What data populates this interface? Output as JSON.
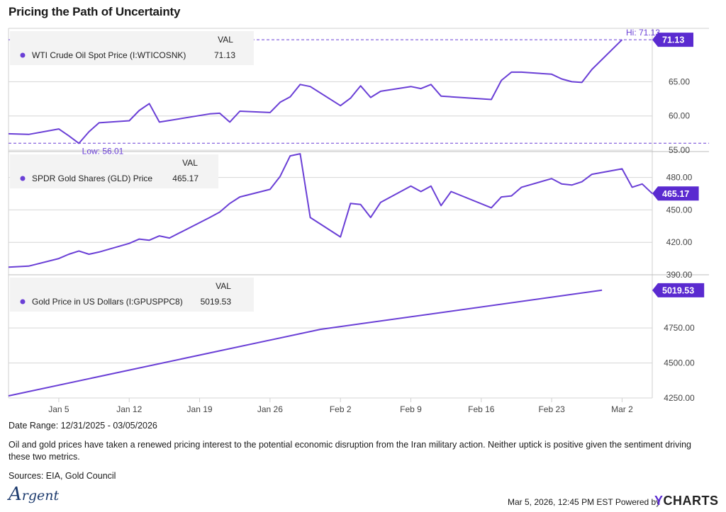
{
  "title": "Pricing the Path of Uncertainty",
  "footer": {
    "date_range": "Date Range: 12/31/2025 - 03/05/2026",
    "description": "Oil and gold prices have taken a renewed pricing interest to the potential economic disruption from the Iran military action. Neither uptick is positive given the sentiment driving these two metrics.",
    "sources": "Sources: EIA, Gold Council",
    "timestamp": "Mar 5, 2026, 12:45 PM EST Powered by",
    "brand": "CHARTS",
    "brand_letter": "Y",
    "logo_text": "rgent",
    "logo_letter": "A"
  },
  "colors": {
    "line": "#6a3fd6",
    "label_bg": "#5a2ad0",
    "grid": "#d6d6d6",
    "text": "#444444"
  },
  "chart_data": {
    "type": "line",
    "x_ticks": [
      "Jan 5",
      "Jan 12",
      "Jan 19",
      "Jan 26",
      "Feb 2",
      "Feb 9",
      "Feb 16",
      "Feb 23",
      "Mar 2"
    ],
    "x_tick_dates": [
      "2026-01-05",
      "2026-01-12",
      "2026-01-19",
      "2026-01-26",
      "2026-02-02",
      "2026-02-09",
      "2026-02-16",
      "2026-02-23",
      "2026-03-02"
    ],
    "x_range": [
      "2025-12-31",
      "2026-03-05"
    ],
    "panels": [
      {
        "legend_header": "VAL",
        "series_name": "WTI Crude Oil Spot Price (I:WTICOSNK)",
        "last_value": "71.13",
        "y_ticks": [
          "65.00",
          "60.00",
          "55.00"
        ],
        "y_tick_values": [
          65,
          60,
          55
        ],
        "ylim": [
          54.8,
          72.8
        ],
        "high": {
          "label": "Hi: 71.13",
          "value": 71.13
        },
        "low": {
          "label": "Low: 56.01",
          "value": 56.01
        },
        "points": [
          [
            "2025-12-31",
            57.4
          ],
          [
            "2026-01-02",
            57.3
          ],
          [
            "2026-01-05",
            58.1
          ],
          [
            "2026-01-06",
            57.1
          ],
          [
            "2026-01-07",
            56.0
          ],
          [
            "2026-01-08",
            57.7
          ],
          [
            "2026-01-09",
            59.0
          ],
          [
            "2026-01-12",
            59.3
          ],
          [
            "2026-01-13",
            60.8
          ],
          [
            "2026-01-14",
            61.8
          ],
          [
            "2026-01-15",
            59.1
          ],
          [
            "2026-01-20",
            60.3
          ],
          [
            "2026-01-21",
            60.4
          ],
          [
            "2026-01-22",
            59.1
          ],
          [
            "2026-01-23",
            60.7
          ],
          [
            "2026-01-26",
            60.5
          ],
          [
            "2026-01-27",
            62.0
          ],
          [
            "2026-01-28",
            62.8
          ],
          [
            "2026-01-29",
            64.6
          ],
          [
            "2026-01-30",
            64.3
          ],
          [
            "2026-02-02",
            61.5
          ],
          [
            "2026-02-03",
            62.6
          ],
          [
            "2026-02-04",
            64.4
          ],
          [
            "2026-02-05",
            62.7
          ],
          [
            "2026-02-06",
            63.6
          ],
          [
            "2026-02-09",
            64.3
          ],
          [
            "2026-02-10",
            64.0
          ],
          [
            "2026-02-11",
            64.6
          ],
          [
            "2026-02-12",
            62.9
          ],
          [
            "2026-02-13",
            62.8
          ],
          [
            "2026-02-17",
            62.4
          ],
          [
            "2026-02-18",
            65.2
          ],
          [
            "2026-02-19",
            66.4
          ],
          [
            "2026-02-20",
            66.4
          ],
          [
            "2026-02-23",
            66.1
          ],
          [
            "2026-02-24",
            65.4
          ],
          [
            "2026-02-25",
            65.0
          ],
          [
            "2026-02-26",
            64.9
          ],
          [
            "2026-02-27",
            66.8
          ],
          [
            "2026-03-02",
            71.13
          ]
        ]
      },
      {
        "legend_header": "VAL",
        "series_name": "SPDR Gold Shares (GLD) Price",
        "last_value": "465.17",
        "y_ticks": [
          "480.00",
          "450.00",
          "420.00",
          "390.00"
        ],
        "y_tick_values": [
          480,
          450,
          420,
          390
        ],
        "ylim": [
          390,
          504
        ],
        "points": [
          [
            "2025-12-31",
            397
          ],
          [
            "2026-01-02",
            398
          ],
          [
            "2026-01-05",
            405
          ],
          [
            "2026-01-06",
            409
          ],
          [
            "2026-01-07",
            412
          ],
          [
            "2026-01-08",
            409
          ],
          [
            "2026-01-09",
            411
          ],
          [
            "2026-01-12",
            419
          ],
          [
            "2026-01-13",
            423
          ],
          [
            "2026-01-14",
            422
          ],
          [
            "2026-01-15",
            426
          ],
          [
            "2026-01-16",
            424
          ],
          [
            "2026-01-20",
            443
          ],
          [
            "2026-01-21",
            448
          ],
          [
            "2026-01-22",
            456
          ],
          [
            "2026-01-23",
            462
          ],
          [
            "2026-01-26",
            469
          ],
          [
            "2026-01-27",
            481
          ],
          [
            "2026-01-28",
            500
          ],
          [
            "2026-01-29",
            502
          ],
          [
            "2026-01-30",
            443
          ],
          [
            "2026-02-02",
            425
          ],
          [
            "2026-02-03",
            456
          ],
          [
            "2026-02-04",
            455
          ],
          [
            "2026-02-05",
            443
          ],
          [
            "2026-02-06",
            457
          ],
          [
            "2026-02-09",
            472
          ],
          [
            "2026-02-10",
            467
          ],
          [
            "2026-02-11",
            472
          ],
          [
            "2026-02-12",
            454
          ],
          [
            "2026-02-13",
            467
          ],
          [
            "2026-02-17",
            452
          ],
          [
            "2026-02-18",
            462
          ],
          [
            "2026-02-19",
            463
          ],
          [
            "2026-02-20",
            471
          ],
          [
            "2026-02-23",
            479
          ],
          [
            "2026-02-24",
            474
          ],
          [
            "2026-02-25",
            473
          ],
          [
            "2026-02-26",
            476
          ],
          [
            "2026-02-27",
            483
          ],
          [
            "2026-03-02",
            488
          ],
          [
            "2026-03-03",
            471
          ],
          [
            "2026-03-04",
            474
          ],
          [
            "2026-03-05",
            465.17
          ]
        ]
      },
      {
        "legend_header": "VAL",
        "series_name": "Gold Price in US Dollars (I:GPUSPPC8)",
        "last_value": "5019.53",
        "y_ticks": [
          "4750.00",
          "4500.00",
          "4250.00"
        ],
        "y_tick_values": [
          4750,
          4500,
          4250
        ],
        "ylim": [
          4250,
          5130
        ],
        "points": [
          [
            "2025-12-31",
            4265
          ],
          [
            "2026-01-31",
            4740
          ],
          [
            "2026-02-28",
            5019.53
          ]
        ]
      }
    ]
  }
}
